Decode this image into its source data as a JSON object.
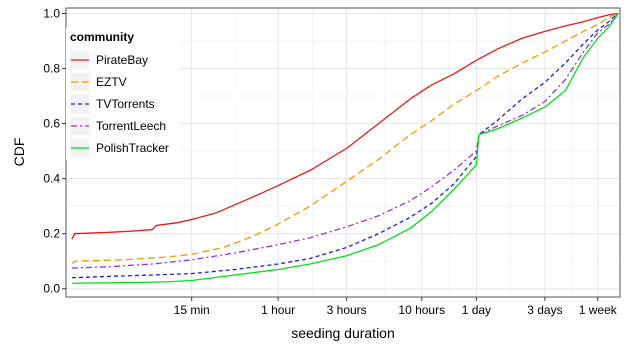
{
  "chart_data": {
    "type": "line",
    "xlabel": "seeding duration",
    "ylabel": "CDF",
    "x_scale": "log",
    "x_unit": "minutes",
    "x_range": [
      2,
      14400
    ],
    "ylim": [
      -0.03,
      1.02
    ],
    "grid": true,
    "x_ticks": [
      {
        "label": "15 min",
        "value": 15
      },
      {
        "label": "1 hour",
        "value": 60
      },
      {
        "label": "3 hours",
        "value": 180
      },
      {
        "label": "10 hours",
        "value": 600
      },
      {
        "label": "1 day",
        "value": 1440
      },
      {
        "label": "3 days",
        "value": 4320
      },
      {
        "label": "1 week",
        "value": 10080
      }
    ],
    "y_ticks": [
      {
        "label": "0.0",
        "value": 0.0
      },
      {
        "label": "0.2",
        "value": 0.2
      },
      {
        "label": "0.4",
        "value": 0.4
      },
      {
        "label": "0.6",
        "value": 0.6
      },
      {
        "label": "0.8",
        "value": 0.8
      },
      {
        "label": "1.0",
        "value": 1.0
      }
    ],
    "legend": {
      "title": "community",
      "position": "top-left"
    },
    "series": [
      {
        "name": "PirateBay",
        "color": "#e41a1c",
        "dash": "solid",
        "points": [
          [
            2.2,
            0.18
          ],
          [
            2.3,
            0.2
          ],
          [
            4,
            0.205
          ],
          [
            6,
            0.21
          ],
          [
            8,
            0.215
          ],
          [
            8.5,
            0.23
          ],
          [
            12,
            0.24
          ],
          [
            16,
            0.255
          ],
          [
            22,
            0.275
          ],
          [
            30,
            0.305
          ],
          [
            45,
            0.345
          ],
          [
            60,
            0.375
          ],
          [
            100,
            0.43
          ],
          [
            180,
            0.51
          ],
          [
            300,
            0.6
          ],
          [
            500,
            0.69
          ],
          [
            700,
            0.74
          ],
          [
            1000,
            0.78
          ],
          [
            1440,
            0.83
          ],
          [
            2000,
            0.87
          ],
          [
            3000,
            0.91
          ],
          [
            4320,
            0.935
          ],
          [
            6000,
            0.955
          ],
          [
            8000,
            0.97
          ],
          [
            10080,
            0.985
          ],
          [
            12000,
            0.995
          ],
          [
            14000,
            1.0
          ]
        ]
      },
      {
        "name": "EZTV",
        "color": "#e69f00",
        "dash": "7,4",
        "points": [
          [
            2.2,
            0.09
          ],
          [
            2.3,
            0.1
          ],
          [
            5,
            0.105
          ],
          [
            10,
            0.115
          ],
          [
            15,
            0.125
          ],
          [
            25,
            0.15
          ],
          [
            40,
            0.19
          ],
          [
            60,
            0.235
          ],
          [
            100,
            0.3
          ],
          [
            180,
            0.39
          ],
          [
            300,
            0.47
          ],
          [
            500,
            0.56
          ],
          [
            700,
            0.61
          ],
          [
            1000,
            0.67
          ],
          [
            1440,
            0.72
          ],
          [
            2000,
            0.77
          ],
          [
            3000,
            0.82
          ],
          [
            4320,
            0.86
          ],
          [
            6000,
            0.9
          ],
          [
            8000,
            0.935
          ],
          [
            10080,
            0.96
          ],
          [
            12000,
            0.985
          ],
          [
            14000,
            1.0
          ]
        ]
      },
      {
        "name": "TVTorrents",
        "color": "#1f1fd1",
        "dash": "4,3",
        "points": [
          [
            2.2,
            0.04
          ],
          [
            4,
            0.045
          ],
          [
            8,
            0.05
          ],
          [
            15,
            0.055
          ],
          [
            30,
            0.07
          ],
          [
            60,
            0.09
          ],
          [
            100,
            0.11
          ],
          [
            180,
            0.15
          ],
          [
            300,
            0.2
          ],
          [
            500,
            0.26
          ],
          [
            700,
            0.31
          ],
          [
            1000,
            0.38
          ],
          [
            1440,
            0.48
          ],
          [
            1500,
            0.56
          ],
          [
            2000,
            0.61
          ],
          [
            3000,
            0.69
          ],
          [
            4320,
            0.75
          ],
          [
            6000,
            0.82
          ],
          [
            8000,
            0.89
          ],
          [
            10080,
            0.94
          ],
          [
            12000,
            0.97
          ],
          [
            14000,
            1.0
          ]
        ]
      },
      {
        "name": "TorrentLeech",
        "color": "#9b30d9",
        "dash": "6,3,2,3",
        "points": [
          [
            2.2,
            0.075
          ],
          [
            4,
            0.08
          ],
          [
            8,
            0.09
          ],
          [
            15,
            0.105
          ],
          [
            30,
            0.13
          ],
          [
            60,
            0.16
          ],
          [
            100,
            0.185
          ],
          [
            180,
            0.225
          ],
          [
            300,
            0.265
          ],
          [
            500,
            0.32
          ],
          [
            700,
            0.37
          ],
          [
            1000,
            0.43
          ],
          [
            1440,
            0.5
          ],
          [
            1500,
            0.56
          ],
          [
            2000,
            0.59
          ],
          [
            3000,
            0.63
          ],
          [
            4320,
            0.68
          ],
          [
            6000,
            0.76
          ],
          [
            8000,
            0.86
          ],
          [
            10080,
            0.93
          ],
          [
            12000,
            0.96
          ],
          [
            14000,
            1.0
          ]
        ]
      },
      {
        "name": "PolishTracker",
        "color": "#00e01a",
        "dash": "solid",
        "points": [
          [
            2.2,
            0.02
          ],
          [
            5,
            0.022
          ],
          [
            10,
            0.025
          ],
          [
            15,
            0.03
          ],
          [
            30,
            0.05
          ],
          [
            60,
            0.07
          ],
          [
            100,
            0.09
          ],
          [
            180,
            0.12
          ],
          [
            300,
            0.16
          ],
          [
            500,
            0.22
          ],
          [
            700,
            0.28
          ],
          [
            1000,
            0.36
          ],
          [
            1440,
            0.45
          ],
          [
            1500,
            0.56
          ],
          [
            2000,
            0.58
          ],
          [
            3000,
            0.62
          ],
          [
            4320,
            0.66
          ],
          [
            6000,
            0.72
          ],
          [
            8000,
            0.84
          ],
          [
            10080,
            0.91
          ],
          [
            12000,
            0.95
          ],
          [
            14000,
            1.0
          ]
        ]
      }
    ]
  }
}
